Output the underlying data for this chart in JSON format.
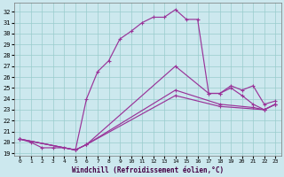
{
  "xlabel": "Windchill (Refroidissement éolien,°C)",
  "bg_color": "#cce8ee",
  "line_color": "#993399",
  "grid_color": "#99cccc",
  "xlim": [
    -0.5,
    23.5
  ],
  "ylim": [
    18.8,
    32.8
  ],
  "xticks": [
    0,
    1,
    2,
    3,
    4,
    5,
    6,
    7,
    8,
    9,
    10,
    11,
    12,
    13,
    14,
    15,
    16,
    17,
    18,
    19,
    20,
    21,
    22,
    23
  ],
  "yticks": [
    19,
    20,
    21,
    22,
    23,
    24,
    25,
    26,
    27,
    28,
    29,
    30,
    31,
    32
  ],
  "curve1_x": [
    0,
    1,
    2,
    3,
    4,
    5,
    6,
    7,
    8,
    9,
    10,
    11,
    12,
    13,
    14,
    15,
    16,
    17,
    18,
    19,
    20,
    21,
    22,
    23
  ],
  "curve1_y": [
    20.3,
    20.0,
    19.5,
    19.5,
    19.5,
    19.3,
    24.0,
    26.5,
    27.5,
    29.5,
    30.2,
    31.0,
    31.5,
    31.5,
    32.2,
    31.3,
    31.3,
    24.5,
    24.5,
    25.0,
    24.3,
    23.5,
    23.0,
    23.5
  ],
  "curve2_x": [
    0,
    5,
    6,
    14,
    17,
    18,
    19,
    20,
    21,
    22,
    23
  ],
  "curve2_y": [
    20.3,
    19.3,
    19.8,
    27.0,
    24.5,
    24.5,
    25.2,
    24.8,
    25.2,
    23.5,
    23.8
  ],
  "curve3_x": [
    0,
    5,
    6,
    14,
    18,
    21,
    22,
    23
  ],
  "curve3_y": [
    20.3,
    19.3,
    19.8,
    24.8,
    23.5,
    23.2,
    23.0,
    23.5
  ],
  "curve4_x": [
    0,
    5,
    6,
    14,
    18,
    22,
    23
  ],
  "curve4_y": [
    20.3,
    19.3,
    19.8,
    24.3,
    23.3,
    23.0,
    23.5
  ]
}
